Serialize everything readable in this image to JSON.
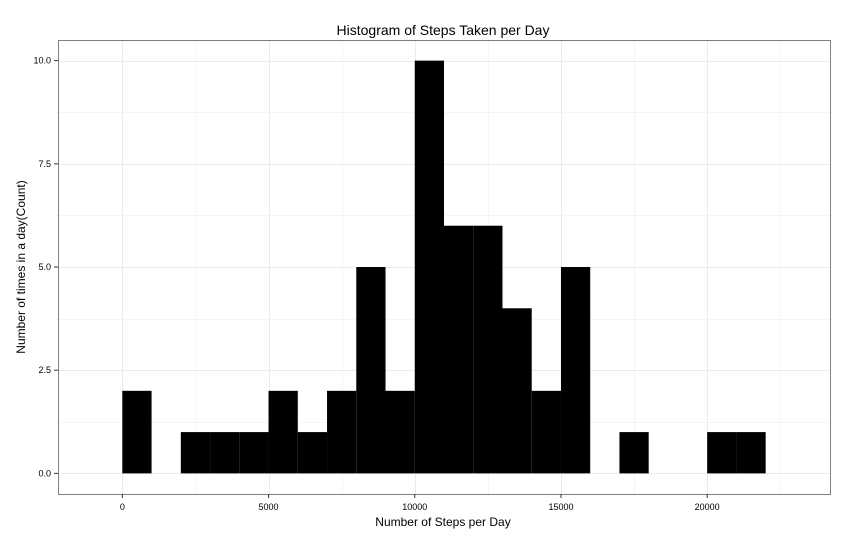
{
  "chart_data": {
    "type": "bar",
    "title": "Histogram of Steps Taken per Day",
    "xlabel": "Number of Steps per Day",
    "ylabel": "Number of times in a day(Count)",
    "xlim": [
      -2200,
      24200
    ],
    "ylim": [
      -0.5,
      10.5
    ],
    "xticks": [
      0,
      5000,
      10000,
      15000,
      20000
    ],
    "yticks": [
      0.0,
      2.5,
      5.0,
      7.5,
      10.0
    ],
    "xtick_labels": [
      "0",
      "5000",
      "10000",
      "15000",
      "20000"
    ],
    "ytick_labels": [
      "0.0",
      "2.5",
      "5.0",
      "7.5",
      "10.0"
    ],
    "bin_width": 1000,
    "bins": [
      {
        "x_start": 0,
        "x_end": 1000,
        "count": 2
      },
      {
        "x_start": 1000,
        "x_end": 2000,
        "count": 0
      },
      {
        "x_start": 2000,
        "x_end": 3000,
        "count": 1
      },
      {
        "x_start": 3000,
        "x_end": 4000,
        "count": 1
      },
      {
        "x_start": 4000,
        "x_end": 5000,
        "count": 1
      },
      {
        "x_start": 5000,
        "x_end": 6000,
        "count": 2
      },
      {
        "x_start": 6000,
        "x_end": 7000,
        "count": 1
      },
      {
        "x_start": 7000,
        "x_end": 8000,
        "count": 2
      },
      {
        "x_start": 8000,
        "x_end": 9000,
        "count": 5
      },
      {
        "x_start": 9000,
        "x_end": 10000,
        "count": 2
      },
      {
        "x_start": 10000,
        "x_end": 11000,
        "count": 10
      },
      {
        "x_start": 11000,
        "x_end": 12000,
        "count": 6
      },
      {
        "x_start": 12000,
        "x_end": 13000,
        "count": 6
      },
      {
        "x_start": 13000,
        "x_end": 14000,
        "count": 4
      },
      {
        "x_start": 14000,
        "x_end": 15000,
        "count": 2
      },
      {
        "x_start": 15000,
        "x_end": 16000,
        "count": 5
      },
      {
        "x_start": 16000,
        "x_end": 17000,
        "count": 0
      },
      {
        "x_start": 17000,
        "x_end": 18000,
        "count": 1
      },
      {
        "x_start": 18000,
        "x_end": 19000,
        "count": 0
      },
      {
        "x_start": 19000,
        "x_end": 20000,
        "count": 0
      },
      {
        "x_start": 20000,
        "x_end": 21000,
        "count": 1
      },
      {
        "x_start": 21000,
        "x_end": 22000,
        "count": 1
      }
    ],
    "bar_color": "#000000",
    "grid": true,
    "grid_color": "#ebebeb",
    "panel_border_color": "#7f7f7f",
    "legend": "none"
  }
}
